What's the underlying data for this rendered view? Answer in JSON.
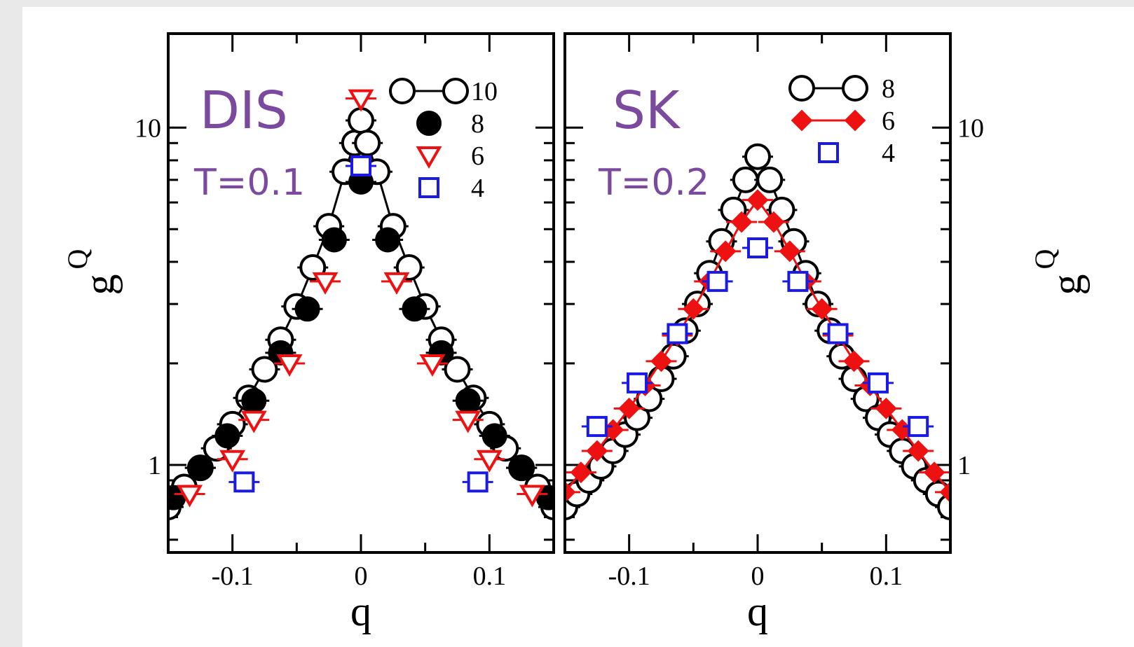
{
  "colors": {
    "background": "#e9e9e9",
    "panel_bg": "#ffffff",
    "annotation": "#7b4a9e",
    "black": "#000000",
    "red": "#ee1111",
    "blue": "#1a1ae6"
  },
  "chart_data": [
    {
      "type": "scatter",
      "panel": "left",
      "title": "DIS",
      "subtitle": "T=0.1",
      "xlabel": "q",
      "ylabel": "g",
      "ylabel_sub": "Q",
      "y_scale": "log",
      "xlim": [
        -0.15,
        0.15
      ],
      "ylim": [
        0.55,
        19
      ],
      "x_ticks": [
        -0.1,
        0,
        0.1
      ],
      "x_tick_labels": [
        "-0.1",
        "0",
        "0.1"
      ],
      "y_ticks": [
        1,
        10
      ],
      "y_tick_labels": [
        "1",
        "10"
      ],
      "grid": false,
      "legend_position": "top-right",
      "series": [
        {
          "name": "10",
          "marker": "open-circle",
          "color": "#000000",
          "line": true,
          "x": [
            -0.15,
            -0.1375,
            -0.125,
            -0.1125,
            -0.1,
            -0.0875,
            -0.075,
            -0.0625,
            -0.05,
            -0.0375,
            -0.025,
            -0.0125,
            -0.005,
            0,
            0.005,
            0.0125,
            0.025,
            0.0375,
            0.05,
            0.0625,
            0.075,
            0.0875,
            0.1,
            0.1125,
            0.125,
            0.1375,
            0.15
          ],
          "y": [
            0.75,
            0.86,
            0.98,
            1.12,
            1.32,
            1.58,
            1.92,
            2.35,
            2.95,
            3.85,
            5.1,
            7.4,
            9.0,
            10.5,
            9.0,
            7.4,
            5.1,
            3.85,
            2.95,
            2.35,
            1.92,
            1.58,
            1.32,
            1.12,
            0.98,
            0.86,
            0.75
          ]
        },
        {
          "name": "8",
          "marker": "filled-circle",
          "color": "#000000",
          "line": false,
          "x": [
            -0.146,
            -0.125,
            -0.104,
            -0.0833,
            -0.0625,
            -0.0417,
            -0.0208,
            0,
            0.0208,
            0.0417,
            0.0625,
            0.0833,
            0.104,
            0.125,
            0.146
          ],
          "y": [
            0.8,
            0.98,
            1.22,
            1.55,
            2.15,
            2.9,
            4.65,
            6.9,
            4.65,
            2.9,
            2.15,
            1.55,
            1.22,
            0.98,
            0.8
          ]
        },
        {
          "name": "6",
          "marker": "open-triangle-down",
          "color": "#ee1111",
          "line": false,
          "x": [
            -0.1333,
            -0.1,
            -0.0833,
            -0.0556,
            -0.0278,
            0,
            0.0278,
            0.0556,
            0.0833,
            0.1,
            0.1333
          ],
          "y": [
            0.82,
            1.04,
            1.36,
            2.0,
            3.5,
            12.2,
            3.5,
            2.0,
            1.36,
            1.04,
            0.82
          ]
        },
        {
          "name": "4",
          "marker": "open-square",
          "color": "#1a1ae6",
          "line": false,
          "x": [
            -0.0909,
            0,
            0.0909
          ],
          "y": [
            0.89,
            7.7,
            0.89
          ]
        }
      ]
    },
    {
      "type": "scatter",
      "panel": "right",
      "title": "SK",
      "subtitle": "T=0.2",
      "xlabel": "q",
      "ylabel": "g",
      "ylabel_sub": "Q",
      "y_scale": "log",
      "xlim": [
        -0.15,
        0.15
      ],
      "ylim": [
        0.55,
        19
      ],
      "x_ticks": [
        -0.1,
        0,
        0.1
      ],
      "x_tick_labels": [
        "-0.1",
        "0",
        "0.1"
      ],
      "y_ticks": [
        1,
        10
      ],
      "y_tick_labels": [
        "1",
        "10"
      ],
      "grid": false,
      "legend_position": "top-right",
      "series": [
        {
          "name": "8",
          "marker": "open-circle",
          "color": "#000000",
          "line": true,
          "x": [
            -0.15,
            -0.1406,
            -0.1313,
            -0.1219,
            -0.1125,
            -0.1031,
            -0.0938,
            -0.0844,
            -0.075,
            -0.0656,
            -0.0563,
            -0.0469,
            -0.0375,
            -0.0281,
            -0.0188,
            -0.0094,
            0,
            0.0094,
            0.0188,
            0.0281,
            0.0375,
            0.0469,
            0.0563,
            0.0656,
            0.075,
            0.0844,
            0.0938,
            0.1031,
            0.1125,
            0.1219,
            0.1313,
            0.1406,
            0.15
          ],
          "y": [
            0.75,
            0.82,
            0.9,
            0.99,
            1.1,
            1.23,
            1.38,
            1.57,
            1.8,
            2.1,
            2.5,
            3.0,
            3.7,
            4.6,
            5.7,
            7.0,
            8.2,
            7.0,
            5.7,
            4.6,
            3.7,
            3.0,
            2.5,
            2.1,
            1.8,
            1.57,
            1.38,
            1.23,
            1.1,
            0.99,
            0.9,
            0.82,
            0.75
          ]
        },
        {
          "name": "6",
          "marker": "filled-diamond",
          "color": "#ee1111",
          "line": true,
          "x": [
            -0.15,
            -0.1375,
            -0.125,
            -0.1125,
            -0.1,
            -0.0875,
            -0.075,
            -0.0625,
            -0.05,
            -0.0375,
            -0.025,
            -0.0125,
            0,
            0.0125,
            0.025,
            0.0375,
            0.05,
            0.0625,
            0.075,
            0.0875,
            0.1,
            0.1125,
            0.125,
            0.1375,
            0.15
          ],
          "y": [
            0.83,
            0.95,
            1.1,
            1.27,
            1.47,
            1.72,
            2.03,
            2.42,
            2.9,
            3.5,
            4.3,
            5.25,
            6.1,
            5.25,
            4.3,
            3.5,
            2.9,
            2.42,
            2.03,
            1.72,
            1.47,
            1.27,
            1.1,
            0.95,
            0.83
          ]
        },
        {
          "name": "4",
          "marker": "open-square",
          "color": "#1a1ae6",
          "line": false,
          "x": [
            -0.125,
            -0.0938,
            -0.0625,
            -0.0313,
            0,
            0.0313,
            0.0625,
            0.0938,
            0.125
          ],
          "y": [
            1.3,
            1.75,
            2.45,
            3.5,
            4.4,
            3.5,
            2.45,
            1.75,
            1.3
          ]
        }
      ]
    }
  ]
}
